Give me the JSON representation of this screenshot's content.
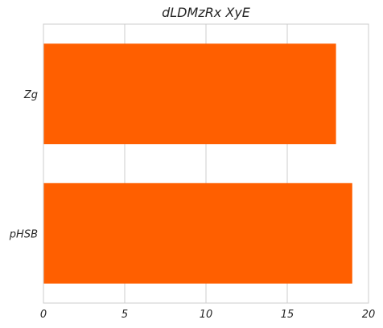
{
  "chart_data": {
    "type": "bar",
    "orientation": "horizontal",
    "title": "dLDMzRx  XyE",
    "xlabel": "",
    "ylabel": "",
    "categories": [
      "Zg",
      "pHSB"
    ],
    "values": [
      18,
      19
    ],
    "xlim": [
      0,
      20
    ],
    "xticks": [
      0,
      5,
      10,
      15,
      20
    ],
    "grid": true,
    "bar_color": "#ff5f00"
  }
}
